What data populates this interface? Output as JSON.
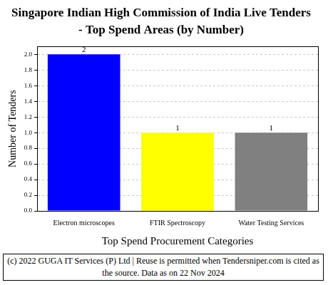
{
  "chart_data": {
    "type": "bar",
    "title": [
      "Singapore Indian High Commission of India Live Tenders",
      "- Top Spend Areas (by Number)"
    ],
    "x_label": "Top Spend Procurement Categories",
    "y_label": "Number of Tenders",
    "footer": "(c) 2022 GUGA IT Services (P) Ltd | Reuse is permitted when Tendersniper.com is cited as the source. Data as on 22 Nov 2024",
    "categories": [
      "Electron microscopes",
      "FTIR Spectroscopy",
      "Water Testing Services"
    ],
    "values": [
      2,
      1,
      1
    ],
    "colors": [
      "#0000ff",
      "#ffff00",
      "#808080"
    ],
    "ylim": [
      0,
      2.1
    ],
    "yticks": [
      {
        "value": 0,
        "label": "0.0"
      },
      {
        "value": 0.2,
        "label": "0.2"
      },
      {
        "value": 0.4,
        "label": "0.4"
      },
      {
        "value": 0.6,
        "label": "0.6"
      },
      {
        "value": 0.8,
        "label": "0.8"
      },
      {
        "value": 1,
        "label": "1.0"
      },
      {
        "value": 1.2,
        "label": "1.2"
      },
      {
        "value": 1.4,
        "label": "1.4"
      },
      {
        "value": 1.6,
        "label": "1.6"
      },
      {
        "value": 1.8,
        "label": "1.8"
      },
      {
        "value": 2,
        "label": "2.0"
      }
    ],
    "grid": true,
    "data_labels": true
  }
}
